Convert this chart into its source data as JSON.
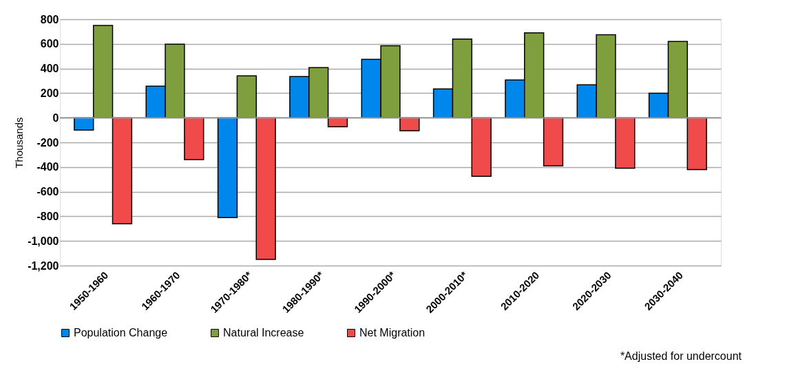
{
  "chart_data": {
    "type": "bar",
    "ylabel": "Thousands",
    "categories": [
      "1950-1960",
      "1960-1970",
      "1970-1980*",
      "1980-1990*",
      "1990-2000*",
      "2000-2010*",
      "2010-2020",
      "2020-2030",
      "2030-2040"
    ],
    "series": [
      {
        "name": "Population Change",
        "color": "#0087ec",
        "values": [
          -100,
          257,
          -810,
          335,
          475,
          235,
          307,
          268,
          200
        ]
      },
      {
        "name": "Natural Increase",
        "color": "#7f9f3f",
        "values": [
          750,
          598,
          340,
          408,
          585,
          640,
          690,
          675,
          620
        ]
      },
      {
        "name": "Net Migration",
        "color": "#f04a4a",
        "values": [
          -860,
          -340,
          -1150,
          -73,
          -105,
          -475,
          -390,
          -410,
          -420
        ]
      }
    ],
    "ylim": [
      -1200,
      800
    ],
    "yticks": [
      {
        "value": -1200,
        "label": "-1,200"
      },
      {
        "value": -1000,
        "label": "-1,000"
      },
      -800,
      -600,
      -400,
      -200,
      0,
      200,
      400,
      600,
      800
    ],
    "grid": "y",
    "legend": "bottom",
    "annotations": [
      "*Adjusted for undercount"
    ]
  }
}
